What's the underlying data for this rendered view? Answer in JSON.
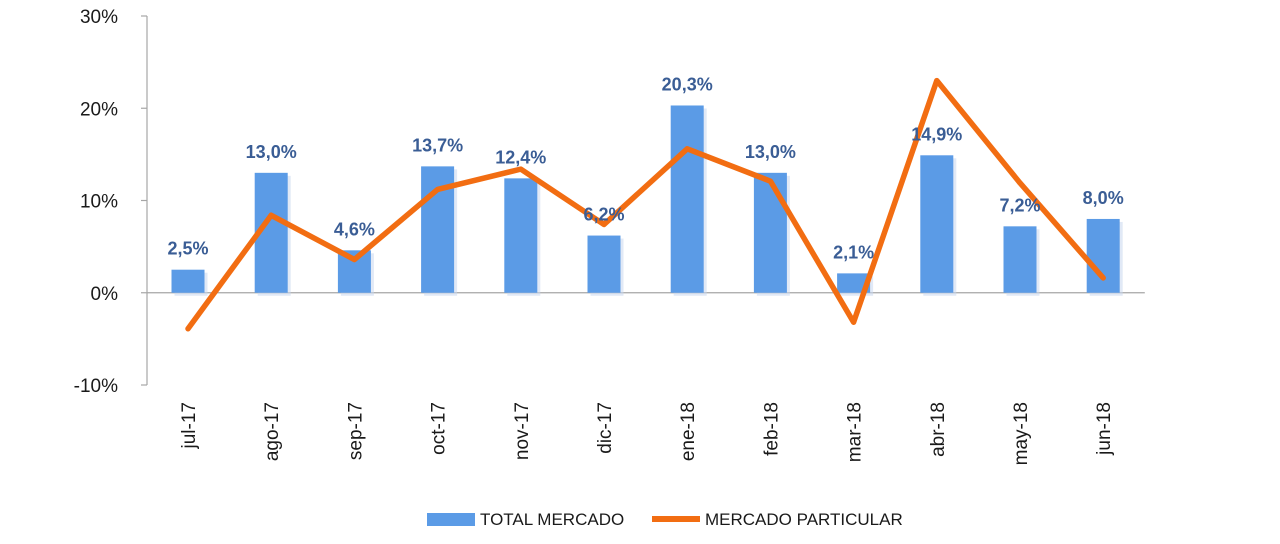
{
  "chart_data": {
    "type": "bar",
    "title": "",
    "xlabel": "",
    "ylabel": "",
    "ylim": [
      -10,
      30
    ],
    "yticks": [
      {
        "value": 30,
        "label": "30%",
        "color": "#1a1a1a"
      },
      {
        "value": 20,
        "label": "20%",
        "color": "#1a1a1a"
      },
      {
        "value": 10,
        "label": "10%",
        "color": "#1a1a1a"
      },
      {
        "value": 0,
        "label": "0%",
        "color": "#1a1a1a"
      },
      {
        "value": -10,
        "label": "-10%",
        "color": "#e8231f"
      }
    ],
    "categories": [
      "jul-17",
      "ago-17",
      "sep-17",
      "oct-17",
      "nov-17",
      "dic-17",
      "ene-18",
      "feb-18",
      "mar-18",
      "abr-18",
      "may-18",
      "jun-18"
    ],
    "series": [
      {
        "name": "TOTAL MERCADO",
        "kind": "bar",
        "color": "#5b9be6",
        "values": [
          2.5,
          13.0,
          4.6,
          13.7,
          12.4,
          6.2,
          20.3,
          13.0,
          2.1,
          14.9,
          7.2,
          8.0
        ],
        "labels": [
          "2,5%",
          "13,0%",
          "4,6%",
          "13,7%",
          "12,4%",
          "6,2%",
          "20,3%",
          "13,0%",
          "2,1%",
          "14,9%",
          "7,2%",
          "8,0%"
        ]
      },
      {
        "name": "MERCADO PARTICULAR",
        "kind": "line",
        "color": "#f26d12",
        "values": [
          -3.9,
          8.4,
          3.6,
          11.2,
          13.4,
          7.4,
          15.6,
          12.1,
          -3.2,
          23.0,
          11.9,
          1.6
        ]
      }
    ],
    "label_color": "#3a5d95",
    "legend_position": "bottom-center",
    "grid": false
  }
}
